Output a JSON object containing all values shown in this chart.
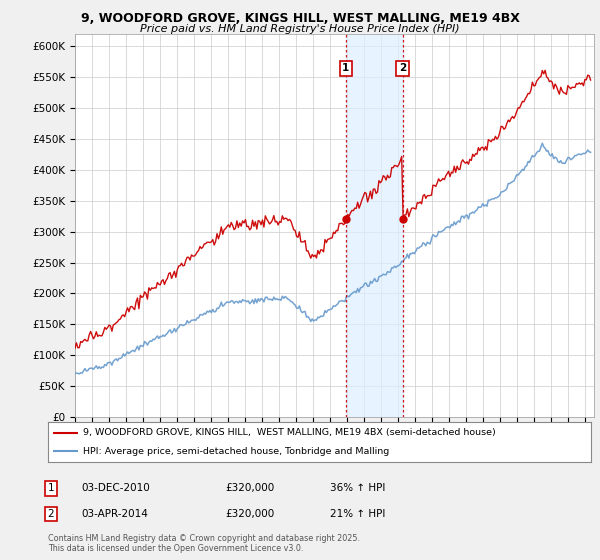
{
  "title": "9, WOODFORD GROVE, KINGS HILL, WEST MALLING, ME19 4BX",
  "subtitle": "Price paid vs. HM Land Registry's House Price Index (HPI)",
  "yticks": [
    0,
    50000,
    100000,
    150000,
    200000,
    250000,
    300000,
    350000,
    400000,
    450000,
    500000,
    550000,
    600000
  ],
  "ylim": [
    0,
    620000
  ],
  "xlim_start": 1995.0,
  "xlim_end": 2025.5,
  "legend_line1": "9, WOODFORD GROVE, KINGS HILL,  WEST MALLING, ME19 4BX (semi-detached house)",
  "legend_line2": "HPI: Average price, semi-detached house, Tonbridge and Malling",
  "annotation1_label": "1",
  "annotation1_date": "03-DEC-2010",
  "annotation1_price": "£320,000",
  "annotation1_hpi": "36% ↑ HPI",
  "annotation2_label": "2",
  "annotation2_date": "03-APR-2014",
  "annotation2_price": "£320,000",
  "annotation2_hpi": "21% ↑ HPI",
  "footer": "Contains HM Land Registry data © Crown copyright and database right 2025.\nThis data is licensed under the Open Government Licence v3.0.",
  "red_color": "#cc0000",
  "blue_color": "#6699cc",
  "vline_color": "#cc0000",
  "annotation_box_color": "#cc0000",
  "background_color": "#f0f0f0",
  "plot_bg_color": "#ffffff",
  "shade_color": "#ddeeff",
  "sale1_year": 2010.917,
  "sale2_year": 2014.25,
  "sale1_price": 320000,
  "sale2_price": 320000
}
